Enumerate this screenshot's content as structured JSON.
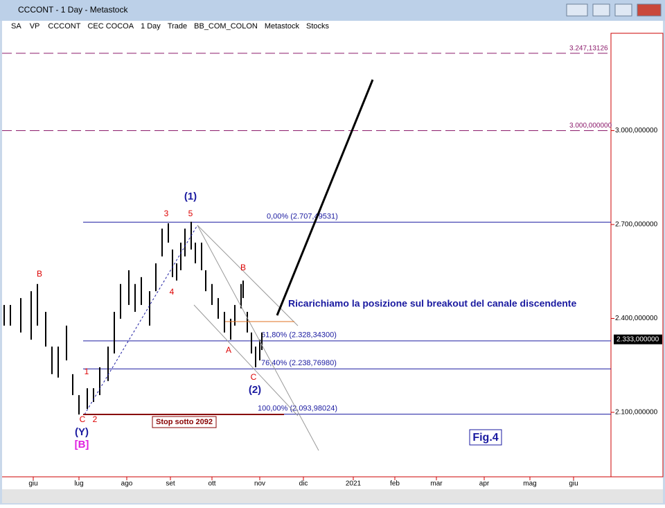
{
  "window": {
    "title": "CCCONT - 1 Day - Metastock"
  },
  "toolbar": [
    "SA",
    "VP",
    "CCCONT",
    "CEC COCOA",
    "1 Day",
    "Trade",
    "BB_COM_COLON",
    "Metastock",
    "Stocks"
  ],
  "chart_data": {
    "type": "ohlc",
    "x": [
      2,
      5,
      10,
      15,
      18,
      22,
      25,
      28,
      32,
      35,
      38,
      42,
      45,
      48,
      52,
      55,
      58,
      62,
      65,
      68,
      72,
      75,
      78,
      81,
      83,
      85,
      87,
      89,
      92,
      94,
      97,
      99,
      102,
      105,
      108,
      111,
      113,
      116,
      117,
      119,
      121,
      123,
      125,
      126
    ],
    "high": [
      2443,
      2443,
      2465,
      2487,
      2510,
      2421,
      2310,
      2310,
      2377,
      2222,
      2155,
      2177,
      2177,
      2244,
      2310,
      2421,
      2510,
      2554,
      2510,
      2532,
      2487,
      2576,
      2687,
      2704,
      2620,
      2576,
      2642,
      2687,
      2709,
      2642,
      2642,
      2554,
      2510,
      2465,
      2421,
      2399,
      2443,
      2510,
      2521,
      2421,
      2355,
      2310,
      2332,
      2355
    ],
    "low": [
      2377,
      2377,
      2355,
      2332,
      2377,
      2310,
      2222,
      2211,
      2266,
      2155,
      2093,
      2111,
      2133,
      2155,
      2200,
      2288,
      2399,
      2443,
      2421,
      2443,
      2377,
      2487,
      2598,
      2642,
      2532,
      2521,
      2554,
      2598,
      2620,
      2576,
      2554,
      2487,
      2443,
      2399,
      2355,
      2332,
      2377,
      2432,
      2465,
      2355,
      2288,
      2244,
      2266,
      2299
    ],
    "color": "#000000",
    "xlim": [
      0,
      294
    ],
    "xticks": [
      {
        "value": 16,
        "label": "giu"
      },
      {
        "value": 38,
        "label": "lug"
      },
      {
        "value": 61,
        "label": "ago"
      },
      {
        "value": 82,
        "label": "set"
      },
      {
        "value": 102,
        "label": "ott"
      },
      {
        "value": 125,
        "label": "nov"
      },
      {
        "value": 146,
        "label": "dic"
      },
      {
        "value": 170,
        "label": "2021"
      },
      {
        "value": 190,
        "label": "feb"
      },
      {
        "value": 210,
        "label": "mar"
      },
      {
        "value": 233,
        "label": "apr"
      },
      {
        "value": 255,
        "label": "mag"
      },
      {
        "value": 276,
        "label": "giu"
      }
    ],
    "ylim": [
      1894,
      3311
    ],
    "yticks": [
      {
        "value": 2100,
        "label": "2.100,000000"
      },
      {
        "value": 2400,
        "label": "2.400,000000"
      },
      {
        "value": 2700,
        "label": "2.700,000000"
      },
      {
        "value": 3000,
        "label": "3.000,000000"
      }
    ],
    "fib_levels": [
      {
        "value": 2707.49531,
        "label": "0,00% (2.707,49531)"
      },
      {
        "value": 2328.343,
        "label": "61,80% (2.328,34300)"
      },
      {
        "value": 2238.7698,
        "label": "76,40% (2.238,76980)"
      },
      {
        "value": 2093.98024,
        "label": "100,00% (2.093,98024)"
      }
    ],
    "targets": [
      {
        "value": 3247.13126,
        "label": "3.247,13126"
      },
      {
        "value": 3000,
        "label": "3.000,000000"
      }
    ],
    "last_price": {
      "value": 2333,
      "label": "2.333,000000"
    },
    "annotations": [
      "(1)",
      "3",
      "5",
      "4",
      "B",
      "1",
      "C",
      "2",
      "(Y)",
      "[B]",
      "B",
      "A",
      "C",
      "(2)",
      "Ricarichiamo la posizione sul breakout del canale discendente",
      "Stop sotto 2092",
      "Fig.4"
    ]
  }
}
